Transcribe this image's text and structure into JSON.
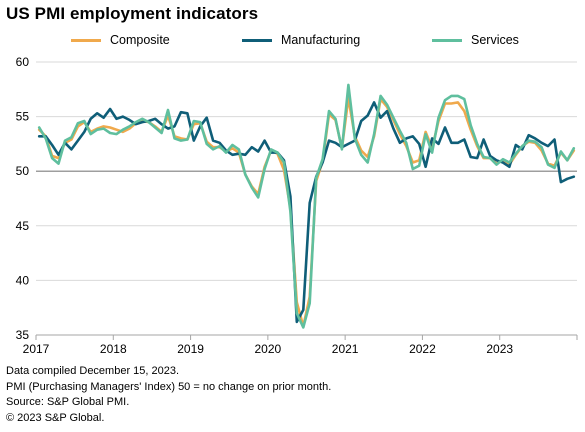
{
  "title": "US PMI employment indicators",
  "colors": {
    "composite": "#f0a94c",
    "manufacturing": "#0f5e78",
    "services": "#5fbf9e",
    "grid": "#d9d9d9",
    "baseline": "#7f7f7f"
  },
  "footer": {
    "line1": "Data compiled December 15, 2023.",
    "line2": "PMI (Purchasing Managers' Index) 50 =  no change on prior month.",
    "line3": "Source: S&P Global PMI.",
    "line4": "© 2023 S&P Global."
  },
  "chart_data": {
    "type": "line",
    "title": "US PMI employment indicators",
    "xlabel": "",
    "ylabel": "",
    "ylim": [
      35,
      60
    ],
    "yticks": [
      35,
      40,
      45,
      50,
      55,
      60
    ],
    "xticks": [
      "2017",
      "2018",
      "2019",
      "2020",
      "2021",
      "2022",
      "2023"
    ],
    "legend_position": "top",
    "reference_line": 50,
    "grid": "horizontal",
    "x_start": "2017-01",
    "x_end": "2023-12",
    "series": [
      {
        "name": "Composite",
        "color": "#f0a94c",
        "values": [
          53.8,
          53.2,
          51.4,
          51.2,
          52.6,
          52.9,
          54.1,
          54.5,
          53.6,
          53.9,
          54.1,
          54.0,
          53.8,
          53.6,
          53.9,
          54.4,
          54.6,
          54.5,
          54.1,
          53.6,
          55.1,
          53.2,
          53.0,
          52.9,
          54.3,
          54.4,
          52.7,
          52.2,
          52.2,
          51.8,
          52.1,
          51.7,
          49.7,
          48.6,
          47.9,
          50.4,
          51.9,
          51.6,
          50.1,
          46.6,
          38.0,
          35.8,
          38.5,
          49.1,
          50.9,
          55.2,
          54.7,
          52.1,
          56.7,
          53.2,
          51.9,
          51.3,
          53.2,
          56.6,
          55.9,
          54.7,
          53.4,
          52.3,
          50.8,
          51.0,
          53.6,
          52.1,
          54.6,
          56.2,
          56.2,
          56.3,
          55.5,
          53.8,
          52.3,
          51.2,
          51.2,
          50.7,
          51.0,
          50.6,
          51.5,
          52.3,
          52.7,
          52.6,
          51.9,
          50.7,
          50.5,
          51.7,
          51.0,
          51.9
        ]
      },
      {
        "name": "Manufacturing",
        "color": "#0f5e78",
        "values": [
          53.2,
          53.2,
          52.4,
          51.5,
          52.6,
          52.0,
          52.8,
          53.6,
          54.8,
          55.3,
          54.9,
          55.7,
          54.8,
          55.0,
          54.7,
          54.3,
          54.5,
          54.6,
          54.8,
          54.3,
          53.9,
          54.1,
          55.4,
          55.3,
          52.8,
          54.1,
          54.9,
          52.8,
          52.6,
          51.9,
          51.5,
          51.6,
          51.5,
          52.2,
          51.8,
          52.8,
          51.7,
          51.7,
          51.0,
          47.7,
          36.2,
          37.3,
          47.1,
          49.5,
          50.8,
          52.8,
          52.6,
          52.2,
          52.5,
          52.8,
          54.6,
          55.1,
          56.3,
          54.9,
          55.5,
          53.9,
          52.6,
          53.0,
          53.2,
          52.5,
          50.4,
          53.0,
          52.5,
          54.0,
          52.6,
          52.6,
          52.9,
          51.3,
          51.2,
          52.9,
          51.4,
          51.0,
          50.8,
          50.4,
          52.4,
          52.0,
          53.3,
          53.0,
          52.6,
          52.3,
          52.9,
          49.0,
          49.3,
          49.5
        ]
      },
      {
        "name": "Services",
        "color": "#5fbf9e",
        "values": [
          54.0,
          53.0,
          51.2,
          50.7,
          52.8,
          53.1,
          54.4,
          54.6,
          53.4,
          53.8,
          53.9,
          53.5,
          53.4,
          53.8,
          54.1,
          54.5,
          54.8,
          54.5,
          54.0,
          53.5,
          55.6,
          53.0,
          52.8,
          52.9,
          54.6,
          54.5,
          52.5,
          52.0,
          52.3,
          51.7,
          52.4,
          52.0,
          49.7,
          48.5,
          47.6,
          50.2,
          52.0,
          51.7,
          50.8,
          46.3,
          37.0,
          35.7,
          37.9,
          49.4,
          51.1,
          55.5,
          54.8,
          52.0,
          57.9,
          53.0,
          51.5,
          50.8,
          53.4,
          56.9,
          56.1,
          54.9,
          53.7,
          52.6,
          50.2,
          50.5,
          53.4,
          51.7,
          54.9,
          56.5,
          56.9,
          56.9,
          56.6,
          54.2,
          52.5,
          51.3,
          51.2,
          50.6,
          51.1,
          50.8,
          51.6,
          52.3,
          52.8,
          52.7,
          52.2,
          50.6,
          50.3,
          51.8,
          51.0,
          52.1
        ]
      }
    ]
  }
}
